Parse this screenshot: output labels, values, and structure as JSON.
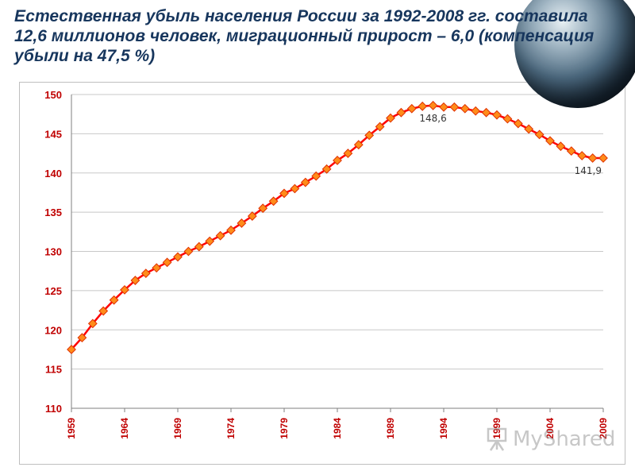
{
  "slide": {
    "title": "Естественная убыль населения России за  1992-2008 гг. составила 12,6 миллионов человек, миграционный прирост – 6,0 (компенсация убыли на 47,5 %)"
  },
  "watermark": {
    "text": "MyShared"
  },
  "colors": {
    "title": "#17365d",
    "line": "#ff0000",
    "marker_fill": "#ff8c1a",
    "marker_stroke": "#e03000",
    "tick_labels": "#c00000",
    "grid": "#c8c8c8"
  },
  "chart_data": {
    "type": "line",
    "title": "",
    "xlabel": "",
    "ylabel": "",
    "ylim": [
      110,
      150
    ],
    "yticks": [
      "110",
      "115",
      "120",
      "125",
      "130",
      "135",
      "140",
      "145",
      "150"
    ],
    "xticks": [
      "1959",
      "1964",
      "1969",
      "1974",
      "1979",
      "1984",
      "1989",
      "1994",
      "1999",
      "2004",
      "2009"
    ],
    "grid": "horizontal",
    "x": [
      1959,
      1960,
      1961,
      1962,
      1963,
      1964,
      1965,
      1966,
      1967,
      1968,
      1969,
      1970,
      1971,
      1972,
      1973,
      1974,
      1975,
      1976,
      1977,
      1978,
      1979,
      1980,
      1981,
      1982,
      1983,
      1984,
      1985,
      1986,
      1987,
      1988,
      1989,
      1990,
      1991,
      1992,
      1993,
      1994,
      1995,
      1996,
      1997,
      1998,
      1999,
      2000,
      2001,
      2002,
      2003,
      2004,
      2005,
      2006,
      2007,
      2008,
      2009
    ],
    "series": [
      {
        "values": [
          117.5,
          119.0,
          120.8,
          122.4,
          123.8,
          125.1,
          126.3,
          127.2,
          127.9,
          128.6,
          129.3,
          130.0,
          130.6,
          131.3,
          132.0,
          132.7,
          133.6,
          134.5,
          135.5,
          136.4,
          137.4,
          138.0,
          138.8,
          139.6,
          140.5,
          141.6,
          142.5,
          143.6,
          144.8,
          145.9,
          147.0,
          147.7,
          148.2,
          148.5,
          148.6,
          148.4,
          148.4,
          148.2,
          147.9,
          147.7,
          147.4,
          146.9,
          146.3,
          145.6,
          144.9,
          144.1,
          143.4,
          142.8,
          142.2,
          141.9,
          141.9
        ]
      }
    ],
    "annotations": [
      {
        "text": "148,6",
        "x": 1993,
        "y": 148.6
      },
      {
        "text": "141,9",
        "x": 2009,
        "y": 141.9
      }
    ]
  }
}
